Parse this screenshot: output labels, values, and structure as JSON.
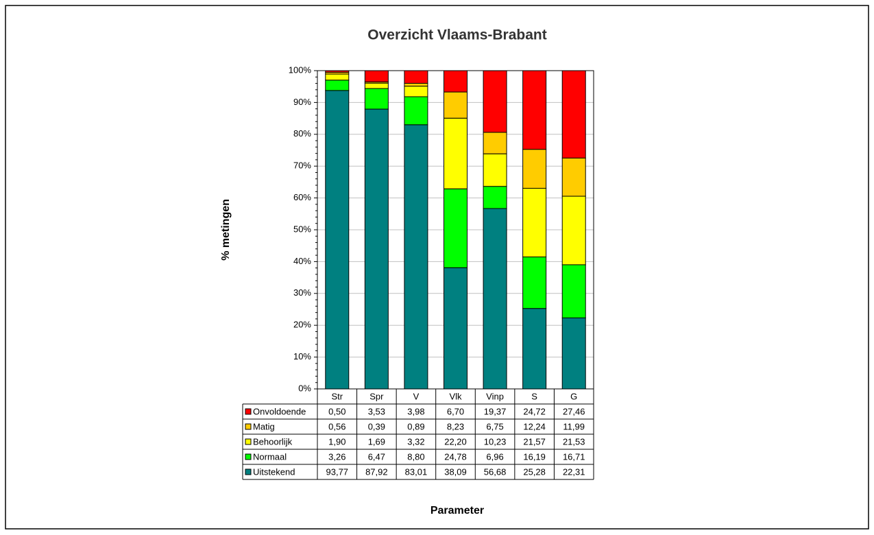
{
  "chart_data": {
    "type": "stacked_bar",
    "title": "Overzicht Vlaams-Brabant",
    "y_label": "% metingen",
    "x_label": "Parameter",
    "categories": [
      "Str",
      "Spr",
      "V",
      "Vlk",
      "Vinp",
      "S",
      "G"
    ],
    "ylim": [
      0,
      100
    ],
    "yticks": [
      {
        "value": 0,
        "label": "0%"
      },
      {
        "value": 10,
        "label": "10%"
      },
      {
        "value": 20,
        "label": "20%"
      },
      {
        "value": 30,
        "label": "30%"
      },
      {
        "value": 40,
        "label": "40%"
      },
      {
        "value": 50,
        "label": "50%"
      },
      {
        "value": 60,
        "label": "60%"
      },
      {
        "value": 70,
        "label": "70%"
      },
      {
        "value": 80,
        "label": "80%"
      },
      {
        "value": 90,
        "label": "90%"
      },
      {
        "value": 100,
        "label": "100%"
      }
    ],
    "grid": true,
    "series": [
      {
        "name": "Uitstekend",
        "color": "#008080",
        "values": [
          93.77,
          87.92,
          83.01,
          38.09,
          56.68,
          25.28,
          22.31
        ],
        "value_labels": [
          "93,77",
          "87,92",
          "83,01",
          "38,09",
          "56,68",
          "25,28",
          "22,31"
        ]
      },
      {
        "name": "Normaal",
        "color": "#00ff00",
        "values": [
          3.26,
          6.47,
          8.8,
          24.78,
          6.96,
          16.19,
          16.71
        ],
        "value_labels": [
          "3,26",
          "6,47",
          "8,80",
          "24,78",
          "6,96",
          "16,19",
          "16,71"
        ]
      },
      {
        "name": "Behoorlijk",
        "color": "#ffff00",
        "values": [
          1.9,
          1.69,
          3.32,
          22.2,
          10.23,
          21.57,
          21.53
        ],
        "value_labels": [
          "1,90",
          "1,69",
          "3,32",
          "22,20",
          "10,23",
          "21,57",
          "21,53"
        ]
      },
      {
        "name": "Matig",
        "color": "#ffcc00",
        "values": [
          0.56,
          0.39,
          0.89,
          8.23,
          6.75,
          12.24,
          11.99
        ],
        "value_labels": [
          "0,56",
          "0,39",
          "0,89",
          "8,23",
          "6,75",
          "12,24",
          "11,99"
        ]
      },
      {
        "name": "Onvoldoende",
        "color": "#ff0000",
        "values": [
          0.5,
          3.53,
          3.98,
          6.7,
          19.37,
          24.72,
          27.46
        ],
        "value_labels": [
          "0,50",
          "3,53",
          "3,98",
          "6,70",
          "19,37",
          "24,72",
          "27,46"
        ]
      }
    ]
  }
}
